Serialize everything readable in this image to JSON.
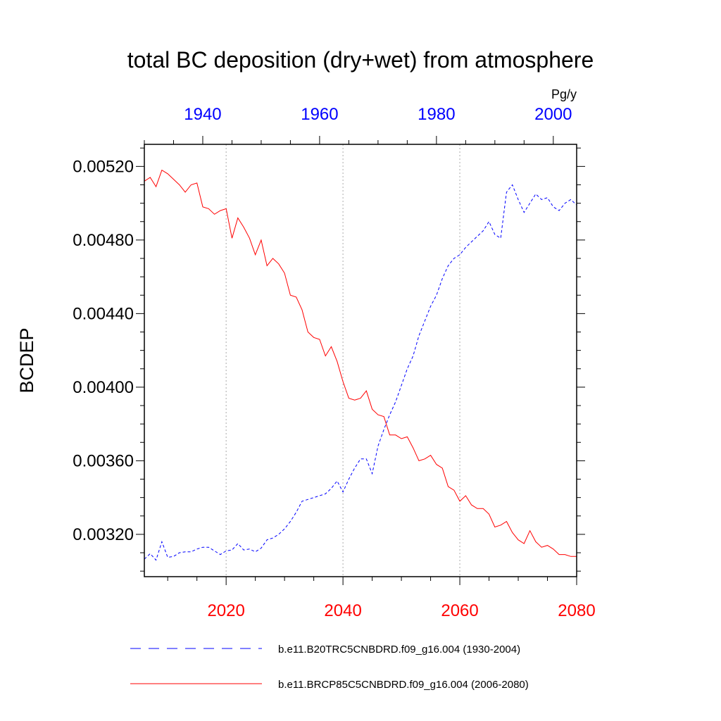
{
  "chart_data": {
    "type": "line",
    "title": "total BC deposition (dry+wet) from atmosphere",
    "ylabel": "BCDEP",
    "units": "Pg/y",
    "ylim": [
      0.00297,
      0.00532
    ],
    "yticks": [
      0.0032,
      0.0036,
      0.004,
      0.0044,
      0.0048,
      0.0052
    ],
    "ytick_labels": [
      "0.00320",
      "0.00360",
      "0.00400",
      "0.00440",
      "0.00480",
      "0.00520"
    ],
    "x_bottom": {
      "range": [
        2006,
        2080
      ],
      "ticks": [
        2020,
        2040,
        2060,
        2080
      ],
      "tick_labels": [
        "2020",
        "2040",
        "2060",
        "2080"
      ],
      "color": "#ff0000"
    },
    "x_top": {
      "range": [
        1930,
        2004
      ],
      "ticks": [
        1940,
        1960,
        1980,
        2000
      ],
      "tick_labels": [
        "1940",
        "1960",
        "1980",
        "2000"
      ],
      "color": "#0000ff"
    },
    "grid": "vertical dotted at bottom-axis major ticks",
    "legend_placement": "bottom",
    "series": [
      {
        "name": "b.e11.B20TRC5CNBDRD.f09_g16.004 (1930-2004)",
        "axis": "top",
        "color": "#0000ff",
        "dash": "dashed",
        "x_start": 1930,
        "values": [
          0.003065,
          0.003095,
          0.00306,
          0.00316,
          0.003075,
          0.00308,
          0.0031,
          0.003105,
          0.003105,
          0.00312,
          0.00313,
          0.00313,
          0.00311,
          0.00309,
          0.00311,
          0.003115,
          0.00315,
          0.003115,
          0.00312,
          0.003105,
          0.003125,
          0.00317,
          0.00318,
          0.0032,
          0.00323,
          0.00327,
          0.00332,
          0.00338,
          0.00339,
          0.0034,
          0.00341,
          0.00342,
          0.00345,
          0.00349,
          0.00343,
          0.0035,
          0.00356,
          0.00361,
          0.00361,
          0.00353,
          0.00368,
          0.00377,
          0.00385,
          0.00392,
          0.00401,
          0.0041,
          0.00417,
          0.00428,
          0.00436,
          0.00444,
          0.0045,
          0.00459,
          0.00466,
          0.0047,
          0.00472,
          0.00476,
          0.00479,
          0.00482,
          0.00485,
          0.0049,
          0.00483,
          0.00481,
          0.00506,
          0.0051,
          0.00502,
          0.00495,
          0.005,
          0.00505,
          0.00502,
          0.00503,
          0.00498,
          0.00496,
          0.005,
          0.00502,
          0.00499
        ]
      },
      {
        "name": "b.e11.BRCP85C5CNBDRD.f09_g16.004 (2006-2080)",
        "axis": "bottom",
        "color": "#ff0000",
        "dash": "solid",
        "x_start": 2006,
        "values": [
          0.00512,
          0.00514,
          0.00509,
          0.00518,
          0.00516,
          0.00513,
          0.0051,
          0.00506,
          0.0051,
          0.00511,
          0.00498,
          0.00497,
          0.00494,
          0.00496,
          0.00497,
          0.00481,
          0.00492,
          0.00487,
          0.00481,
          0.00472,
          0.0048,
          0.00466,
          0.0047,
          0.00467,
          0.00462,
          0.0045,
          0.00449,
          0.00442,
          0.0043,
          0.00427,
          0.00426,
          0.00417,
          0.00422,
          0.00414,
          0.00403,
          0.00394,
          0.00393,
          0.00394,
          0.00398,
          0.00388,
          0.00385,
          0.00384,
          0.00374,
          0.00374,
          0.00372,
          0.00373,
          0.00367,
          0.0036,
          0.00361,
          0.00363,
          0.00358,
          0.00356,
          0.00346,
          0.00344,
          0.00338,
          0.00341,
          0.00336,
          0.00334,
          0.00334,
          0.00331,
          0.00324,
          0.00325,
          0.00327,
          0.00321,
          0.00317,
          0.00315,
          0.00322,
          0.00316,
          0.00313,
          0.00314,
          0.00312,
          0.00309,
          0.00309,
          0.00308,
          0.00308
        ]
      }
    ]
  }
}
